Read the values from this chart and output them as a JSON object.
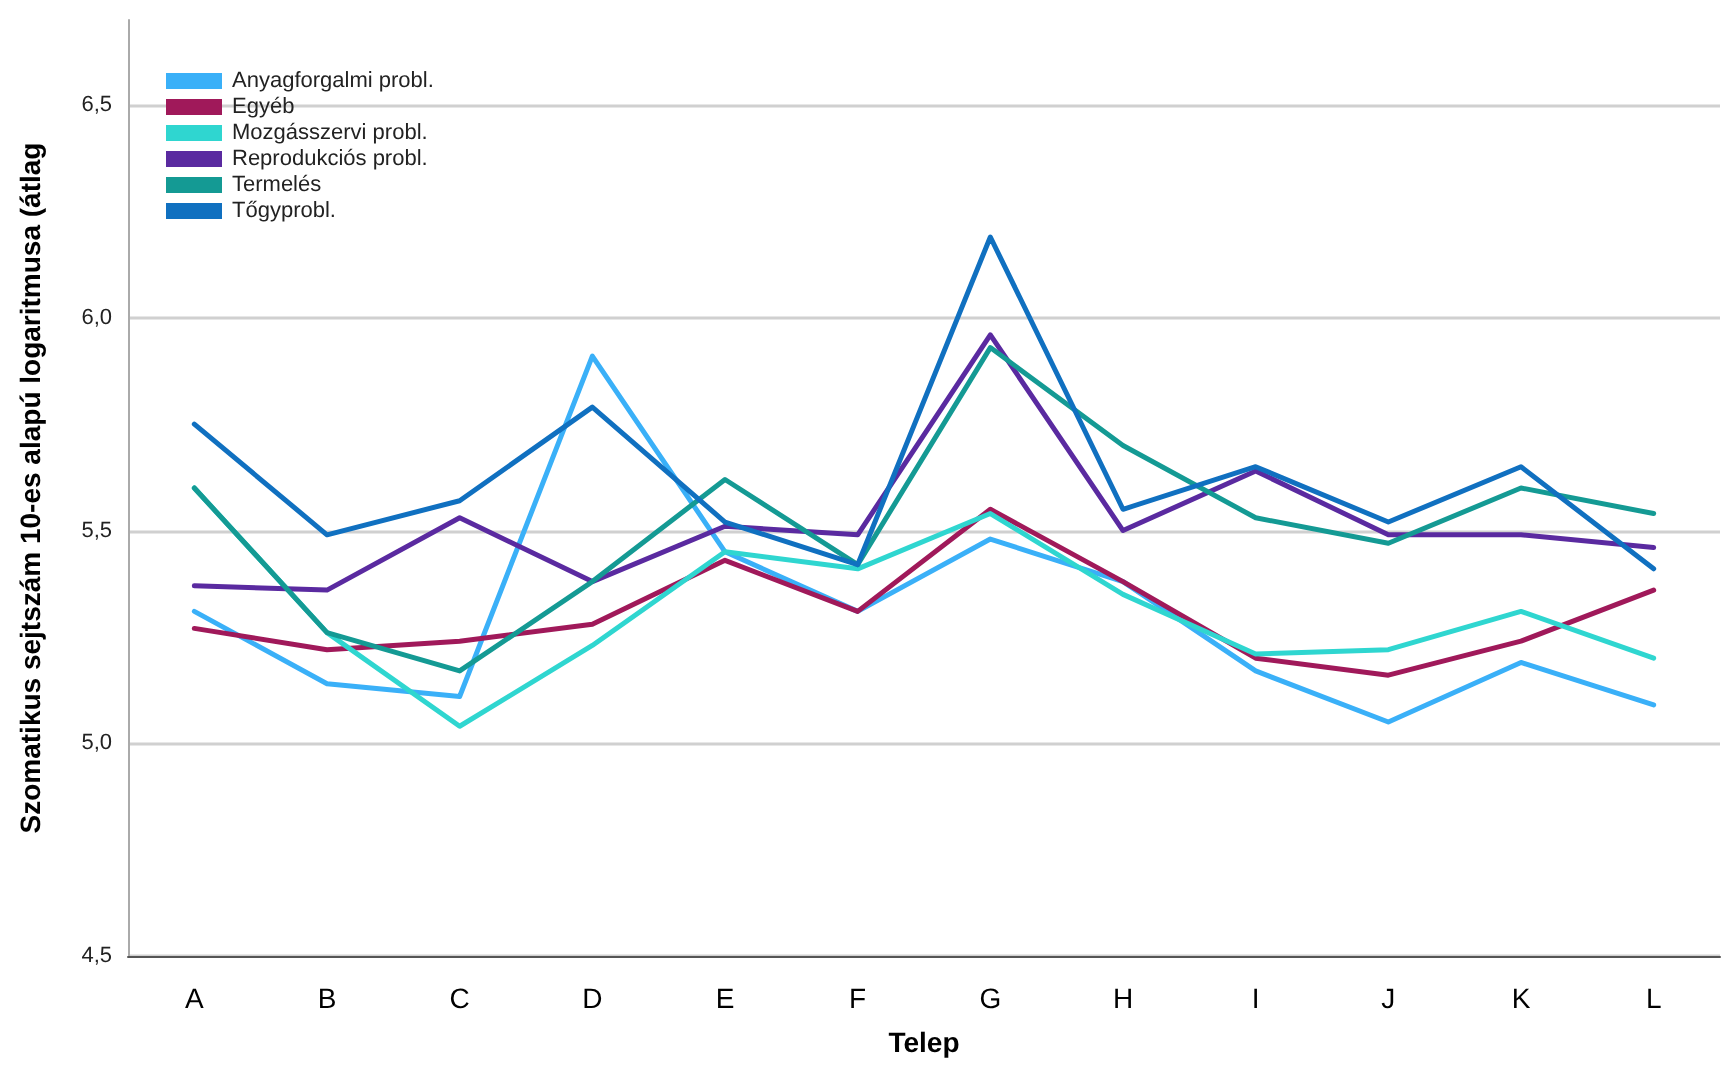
{
  "chart_data": {
    "type": "line",
    "xlabel": "Telep",
    "ylabel": "Szomatikus sejtszám 10-es alapú logaritmusa (átlag",
    "categories": [
      "A",
      "B",
      "C",
      "D",
      "E",
      "F",
      "G",
      "H",
      "I",
      "J",
      "K",
      "L"
    ],
    "series": [
      {
        "name": "Anyagforgalmi probl.",
        "color": "#3ab0f8",
        "values": [
          5.31,
          5.14,
          5.11,
          5.91,
          5.45,
          5.31,
          5.48,
          5.38,
          5.17,
          5.05,
          5.19,
          5.09
        ]
      },
      {
        "name": "Egyéb",
        "color": "#a0195a",
        "values": [
          5.27,
          5.22,
          5.24,
          5.28,
          5.43,
          5.31,
          5.55,
          5.38,
          5.2,
          5.16,
          5.24,
          5.36
        ]
      },
      {
        "name": "Mozgásszervi probl.",
        "color": "#2fd6d0",
        "values": [
          5.6,
          5.26,
          5.04,
          5.23,
          5.45,
          5.41,
          5.54,
          5.35,
          5.21,
          5.22,
          5.31,
          5.2
        ]
      },
      {
        "name": "Reprodukciós probl.",
        "color": "#5a2aa0",
        "values": [
          5.37,
          5.36,
          5.53,
          5.38,
          5.51,
          5.49,
          5.96,
          5.5,
          5.64,
          5.49,
          5.49,
          5.46
        ]
      },
      {
        "name": "Termelés",
        "color": "#149a94",
        "values": [
          5.6,
          5.26,
          5.17,
          5.38,
          5.62,
          5.42,
          5.93,
          5.7,
          5.53,
          5.47,
          5.6,
          5.54
        ]
      },
      {
        "name": "Tőgyprobl.",
        "color": "#1070c0",
        "values": [
          5.75,
          5.49,
          5.57,
          5.79,
          5.52,
          5.42,
          6.19,
          5.55,
          5.65,
          5.52,
          5.65,
          5.41
        ]
      }
    ],
    "ylim": [
      4.5,
      6.7
    ],
    "yticks": [
      {
        "value": 4.5,
        "label": "4,5"
      },
      {
        "value": 5.0,
        "label": "5,0"
      },
      {
        "value": 5.5,
        "label": "5,5"
      },
      {
        "value": 6.0,
        "label": "6,0"
      },
      {
        "value": 6.5,
        "label": "6,5"
      }
    ],
    "grid": "y",
    "legend": "top left",
    "marker": "none",
    "line_style": "solid"
  }
}
